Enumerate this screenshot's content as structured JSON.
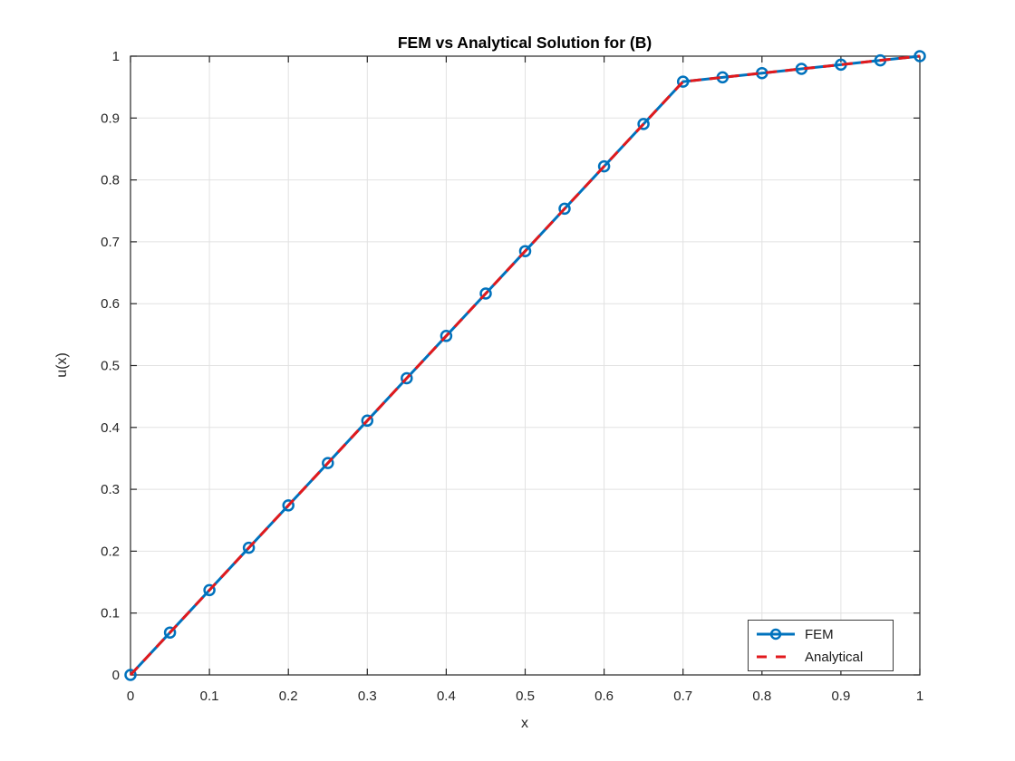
{
  "chart_data": {
    "type": "line",
    "title": "FEM vs Analytical Solution for (B)",
    "xlabel": "x",
    "ylabel": "u(x)",
    "xlim": [
      0,
      1
    ],
    "ylim": [
      0,
      1
    ],
    "grid": true,
    "legend_position": "southeast",
    "xtick_values": [
      0,
      0.1,
      0.2,
      0.3,
      0.4,
      0.5,
      0.6,
      0.7,
      0.8,
      0.9,
      1
    ],
    "xtick_labels": [
      "0",
      "0.1",
      "0.2",
      "0.3",
      "0.4",
      "0.5",
      "0.6",
      "0.7",
      "0.8",
      "0.9",
      "1"
    ],
    "ytick_values": [
      0,
      0.1,
      0.2,
      0.3,
      0.4,
      0.5,
      0.6,
      0.7,
      0.8,
      0.9,
      1
    ],
    "ytick_labels": [
      "0",
      "0.1",
      "0.2",
      "0.3",
      "0.4",
      "0.5",
      "0.6",
      "0.7",
      "0.8",
      "0.9",
      "1"
    ],
    "x": [
      0,
      0.05,
      0.1,
      0.15,
      0.2,
      0.25,
      0.3,
      0.35,
      0.4,
      0.45,
      0.5,
      0.55,
      0.6,
      0.65,
      0.7,
      0.75,
      0.8,
      0.85,
      0.9,
      0.95,
      1
    ],
    "series": [
      {
        "name": "FEM",
        "color": "#0072BD",
        "line_style": "solid",
        "marker": "circle",
        "values": [
          0,
          0.0685,
          0.137,
          0.2055,
          0.274,
          0.3425,
          0.411,
          0.4795,
          0.5479,
          0.6164,
          0.6849,
          0.7534,
          0.8219,
          0.8904,
          0.9589,
          0.9658,
          0.9726,
          0.9795,
          0.9863,
          0.9932,
          1
        ]
      },
      {
        "name": "Analytical",
        "color": "#E2191C",
        "line_style": "dashed",
        "marker": "none",
        "values": [
          0,
          0.0685,
          0.137,
          0.2055,
          0.274,
          0.3425,
          0.411,
          0.4795,
          0.5479,
          0.6164,
          0.6849,
          0.7534,
          0.8219,
          0.8904,
          0.9589,
          0.9658,
          0.9726,
          0.9795,
          0.9863,
          0.9932,
          1
        ]
      }
    ],
    "axis_color": "#262626",
    "grid_color": "#e2e2e2"
  }
}
